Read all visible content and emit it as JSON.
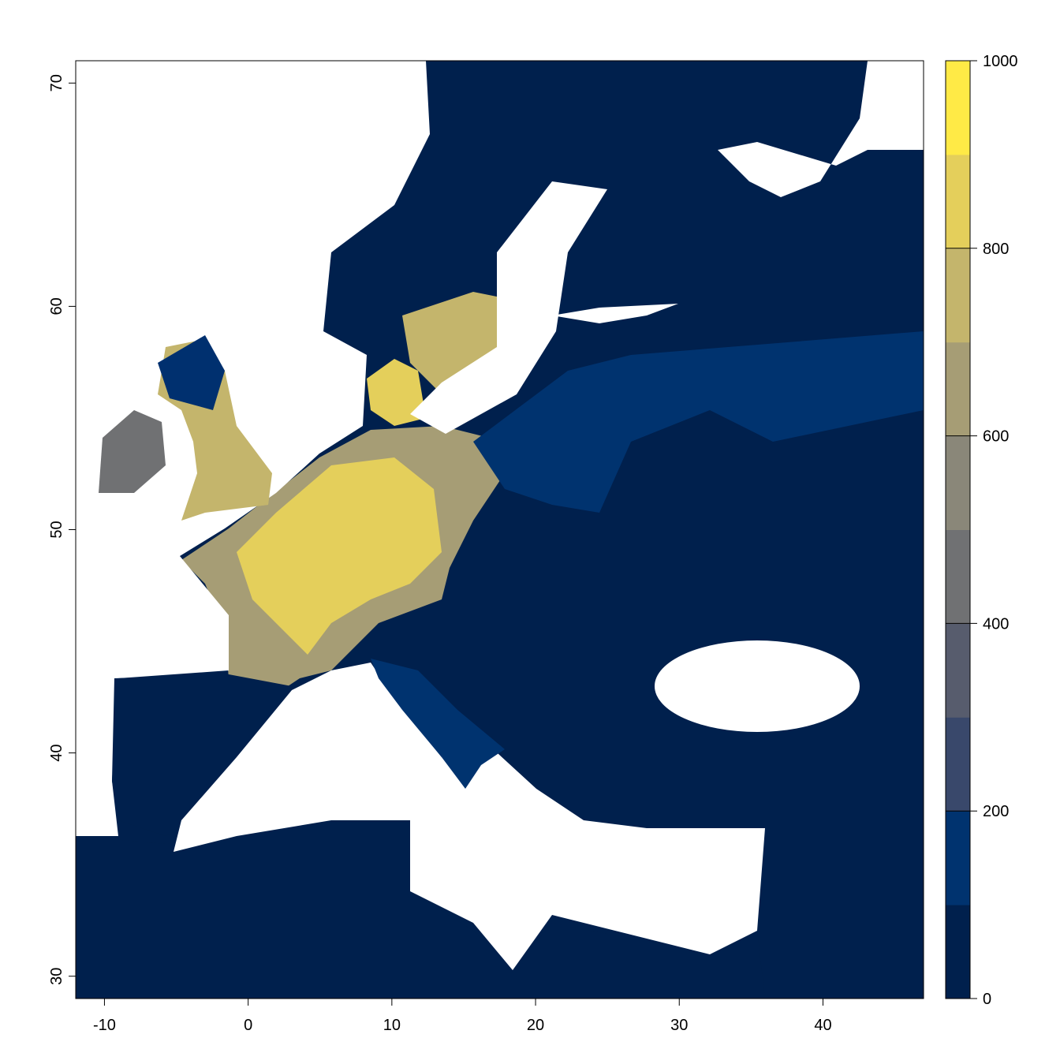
{
  "chart_data": {
    "type": "raster",
    "xlim": [
      -12,
      47
    ],
    "ylim": [
      29,
      71
    ],
    "xticks": [
      -10,
      0,
      10,
      20,
      30,
      40
    ],
    "yticks": [
      30,
      40,
      50,
      60,
      70
    ],
    "colorbar": {
      "lim": [
        0,
        1000
      ],
      "ticks": [
        0,
        200,
        400,
        600,
        800,
        1000
      ],
      "colors": [
        "#00204d",
        "#00336f",
        "#39486b",
        "#575c6d",
        "#707173",
        "#8a8779",
        "#a69d75",
        "#c4b56c",
        "#e4cf5b",
        "#ffea46"
      ]
    }
  }
}
